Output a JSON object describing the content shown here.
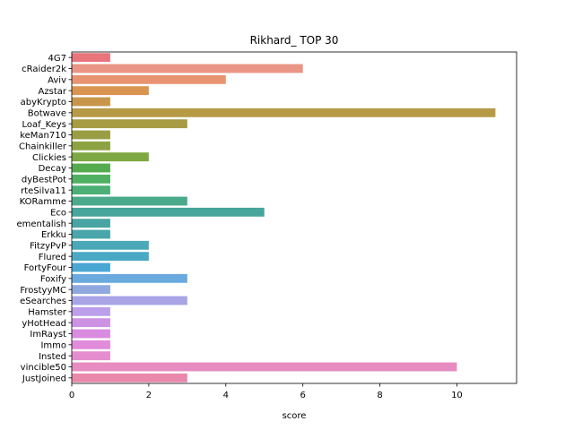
{
  "chart_data": {
    "type": "bar",
    "orientation": "horizontal",
    "title": "Rikhard_ TOP 30",
    "xlabel": "score",
    "ylabel": "",
    "xlim": [
      0,
      11.55
    ],
    "xticks": [
      0,
      2,
      4,
      6,
      8,
      10
    ],
    "grid": false,
    "legend": "none",
    "categories": [
      "4G7",
      "cRaider2k",
      "Aviv",
      "Azstar",
      "abyKrypto",
      "Botwave",
      "Loaf_Keys",
      "keMan710",
      "Chainkiller",
      "Clickies",
      "Decay",
      "dyBestPot",
      "rteSilva11",
      "KORamme",
      "Eco",
      "ementalish",
      "Erkku",
      "FitzyPvP",
      "Flured",
      "FortyFour",
      "Foxify",
      "FrostyyMC",
      "eSearches",
      "Hamster",
      "yHotHead",
      "ImRayst",
      "Immo",
      "Insted",
      "vincible50",
      "JustJoined"
    ],
    "values": [
      1,
      6,
      4,
      2,
      1,
      11,
      3,
      1,
      1,
      2,
      1,
      1,
      1,
      3,
      5,
      1,
      1,
      2,
      2,
      1,
      3,
      1,
      3,
      1,
      1,
      1,
      1,
      1,
      10,
      3
    ],
    "colors": [
      "#e8747c",
      "#ea9585",
      "#e99471",
      "#d9944f",
      "#c8964a",
      "#b79a46",
      "#a79c44",
      "#999e44",
      "#8da242",
      "#7ea843",
      "#55ab4d",
      "#4fb062",
      "#4cb076",
      "#4ba98c",
      "#47a59a",
      "#48a5a3",
      "#49a6aa",
      "#4aa8b8",
      "#4aa9c4",
      "#4aa7d4",
      "#6aaade",
      "#8fa9e0",
      "#a7a5e6",
      "#bc9feb",
      "#cd92e4",
      "#d98be0",
      "#e18bdb",
      "#e48dcf",
      "#e68cc0",
      "#e988aa"
    ]
  }
}
